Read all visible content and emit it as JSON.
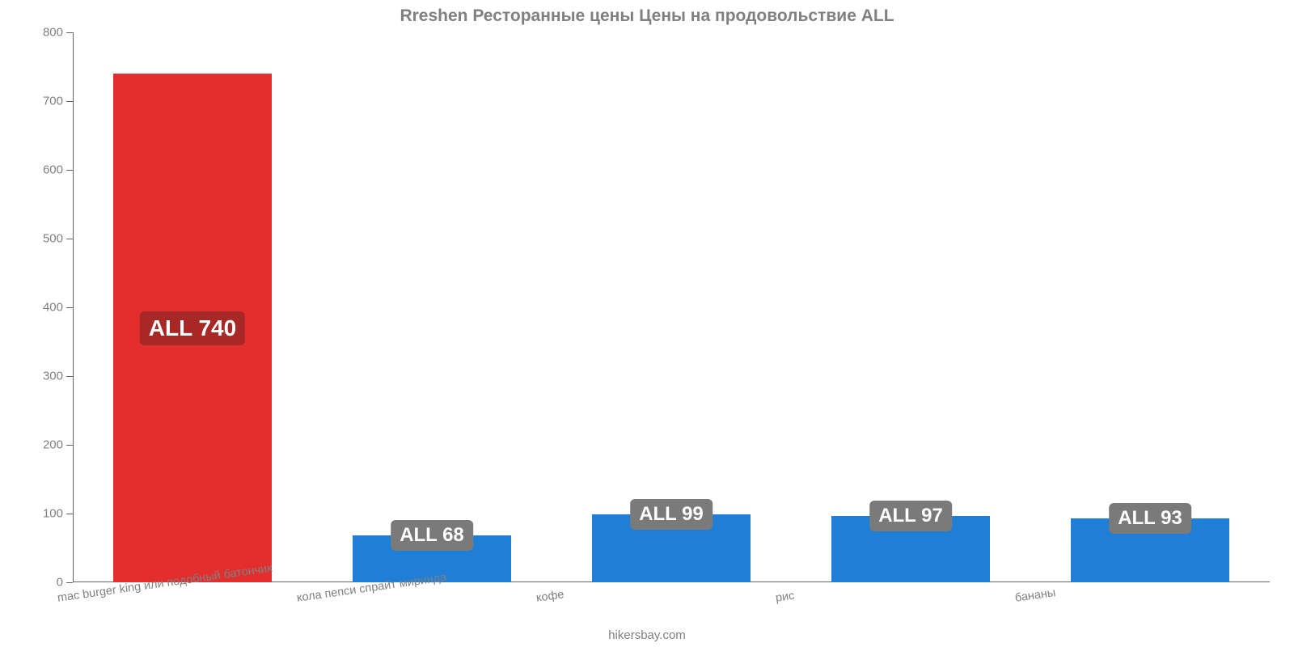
{
  "chart": {
    "type": "bar",
    "title": "Rreshen Ресторанные цены Цены на продовольствие ALL",
    "title_fontsize": 21,
    "title_color": "#808080",
    "attribution": "hikersbay.com",
    "background_color": "#ffffff",
    "axis_color": "#666666",
    "label_color": "#808080",
    "categories": [
      "mac burger king или подобный батончик",
      "кола пепси спрайт миринда",
      "кофе",
      "рис",
      "бананы"
    ],
    "values": [
      740,
      68,
      99,
      97,
      93
    ],
    "value_labels": [
      "ALL 740",
      "ALL 68",
      "ALL 99",
      "ALL 97",
      "ALL 93"
    ],
    "bar_colors": [
      "#e32e2e",
      "#1f7ed6",
      "#1f7ed6",
      "#1f7ed6",
      "#1f7ed6"
    ],
    "bar_width_pct": 66,
    "ylim": [
      0,
      800
    ],
    "yticks": [
      0,
      100,
      200,
      300,
      400,
      500,
      600,
      700,
      800
    ],
    "ytick_fontsize": 15,
    "xlabel_fontsize": 14.5,
    "xlabel_rotate_deg": -8,
    "badge": {
      "bg_primary": "#a82727",
      "bg_default": "#7a7a7a",
      "text_color": "#ffffff",
      "fontsize_primary": 28,
      "fontsize_default": 24,
      "radius": 6
    }
  }
}
